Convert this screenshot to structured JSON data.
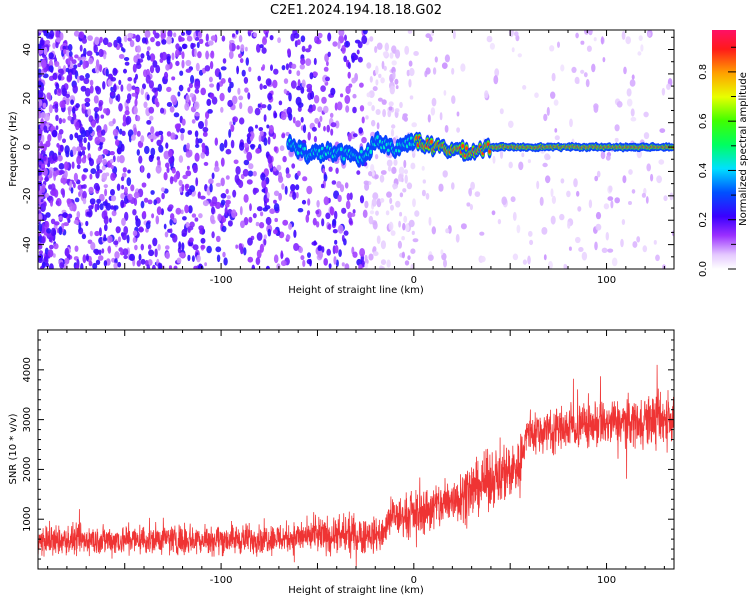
{
  "title": "C2E1.2024.194.18.18.G02",
  "chart_data": [
    {
      "type": "heatmap",
      "xlabel": "Height of straight line (km)",
      "ylabel": "Frequency (Hz)",
      "xlim": [
        -195,
        135
      ],
      "ylim": [
        -50,
        48
      ],
      "x_ticks": [
        -100,
        0,
        100
      ],
      "y_ticks": [
        -40,
        -20,
        0,
        20,
        40
      ],
      "colorbar": {
        "label": "Normalized spectral amplitude",
        "range": [
          0.0,
          0.97
        ],
        "ticks": [
          "0.0",
          "0.2",
          "0.4",
          "0.6",
          "0.8"
        ]
      },
      "signal_track": [
        {
          "x": -65,
          "freq": 2,
          "amp": 0.45
        },
        {
          "x": -55,
          "freq": -3,
          "amp": 0.4
        },
        {
          "x": -45,
          "freq": -2,
          "amp": 0.4
        },
        {
          "x": -35,
          "freq": -3,
          "amp": 0.35
        },
        {
          "x": -25,
          "freq": -4,
          "amp": 0.35
        },
        {
          "x": -20,
          "freq": 3,
          "amp": 0.55
        },
        {
          "x": -10,
          "freq": -1,
          "amp": 0.6
        },
        {
          "x": 0,
          "freq": 3,
          "amp": 0.6
        },
        {
          "x": 10,
          "freq": 0,
          "amp": 0.6
        },
        {
          "x": 20,
          "freq": -1,
          "amp": 0.6
        },
        {
          "x": 30,
          "freq": -2,
          "amp": 0.55
        },
        {
          "x": 40,
          "freq": 0,
          "amp": 0.95
        },
        {
          "x": 80,
          "freq": 0,
          "amp": 0.95
        },
        {
          "x": 100,
          "freq": 0,
          "amp": 0.9
        },
        {
          "x": 135,
          "freq": 0,
          "amp": 0.9
        }
      ],
      "grid": false
    },
    {
      "type": "line",
      "xlabel": "Height of straight line (km)",
      "ylabel": "SNR (10 * v/v)",
      "xlim": [
        -195,
        135
      ],
      "ylim": [
        0,
        4800
      ],
      "x_ticks": [
        -100,
        0,
        100
      ],
      "y_ticks": [
        1000,
        2000,
        3000,
        4000
      ],
      "series": [
        {
          "color": "#ef3434",
          "x": [
            -195,
            -180,
            -160,
            -140,
            -120,
            -100,
            -80,
            -60,
            -45,
            -30,
            -15,
            -13,
            0,
            15,
            30,
            45,
            55,
            58,
            70,
            90,
            110,
            125,
            135
          ],
          "y_mid": [
            550,
            570,
            580,
            590,
            600,
            590,
            610,
            640,
            660,
            680,
            700,
            1000,
            1100,
            1300,
            1600,
            1900,
            2100,
            2700,
            2800,
            2900,
            2950,
            3000,
            3050
          ],
          "y_spread": [
            450,
            450,
            450,
            450,
            450,
            450,
            450,
            450,
            550,
            600,
            450,
            550,
            650,
            750,
            800,
            850,
            850,
            650,
            650,
            700,
            700,
            800,
            800
          ]
        }
      ],
      "grid": false
    }
  ]
}
